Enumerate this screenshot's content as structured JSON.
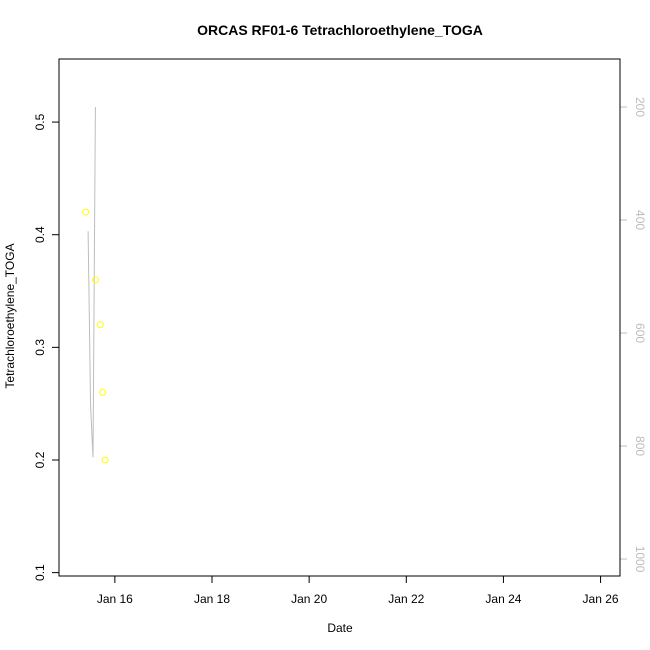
{
  "chart_data": {
    "type": "scatter",
    "title": "ORCAS RF01-6 Tetrachloroethylene_TOGA",
    "xlabel": "Date",
    "ylabel": "Tetrachloroethylene_TOGA",
    "x_ticks": [
      "Jan 16",
      "Jan 18",
      "Jan 20",
      "Jan 22",
      "Jan 24",
      "Jan 26"
    ],
    "x_tick_days": [
      16,
      18,
      20,
      22,
      24,
      26
    ],
    "xlim_days": [
      14.85,
      26.4
    ],
    "ylim": [
      0.097,
      0.556
    ],
    "y_ticks": [
      0.1,
      0.2,
      0.3,
      0.4,
      0.5
    ],
    "y_right_ticks": [
      200,
      400,
      600,
      800,
      1000
    ],
    "y_right_lim": [
      1030,
      115
    ],
    "y_right_reversed": true,
    "grid": false,
    "legend": "none",
    "colors": {
      "rf01": "#ffff00",
      "rf02": "#ddff00",
      "rf03": "#b0ff00",
      "rf04": "#66ff00",
      "rf05": "#22ff55",
      "pressure": "#bdbdbd"
    },
    "series": [
      {
        "color_key": "rf01",
        "x": [
          15.4,
          15.6,
          15.7,
          15.75,
          15.8
        ],
        "values": [
          0.42,
          0.36,
          0.32,
          0.26,
          0.2
        ]
      }
    ],
    "pressure_trace": {
      "points": [
        [
          15.45,
          420
        ],
        [
          15.5,
          730
        ],
        [
          15.55,
          820
        ],
        [
          15.6,
          200
        ]
      ]
    }
  }
}
